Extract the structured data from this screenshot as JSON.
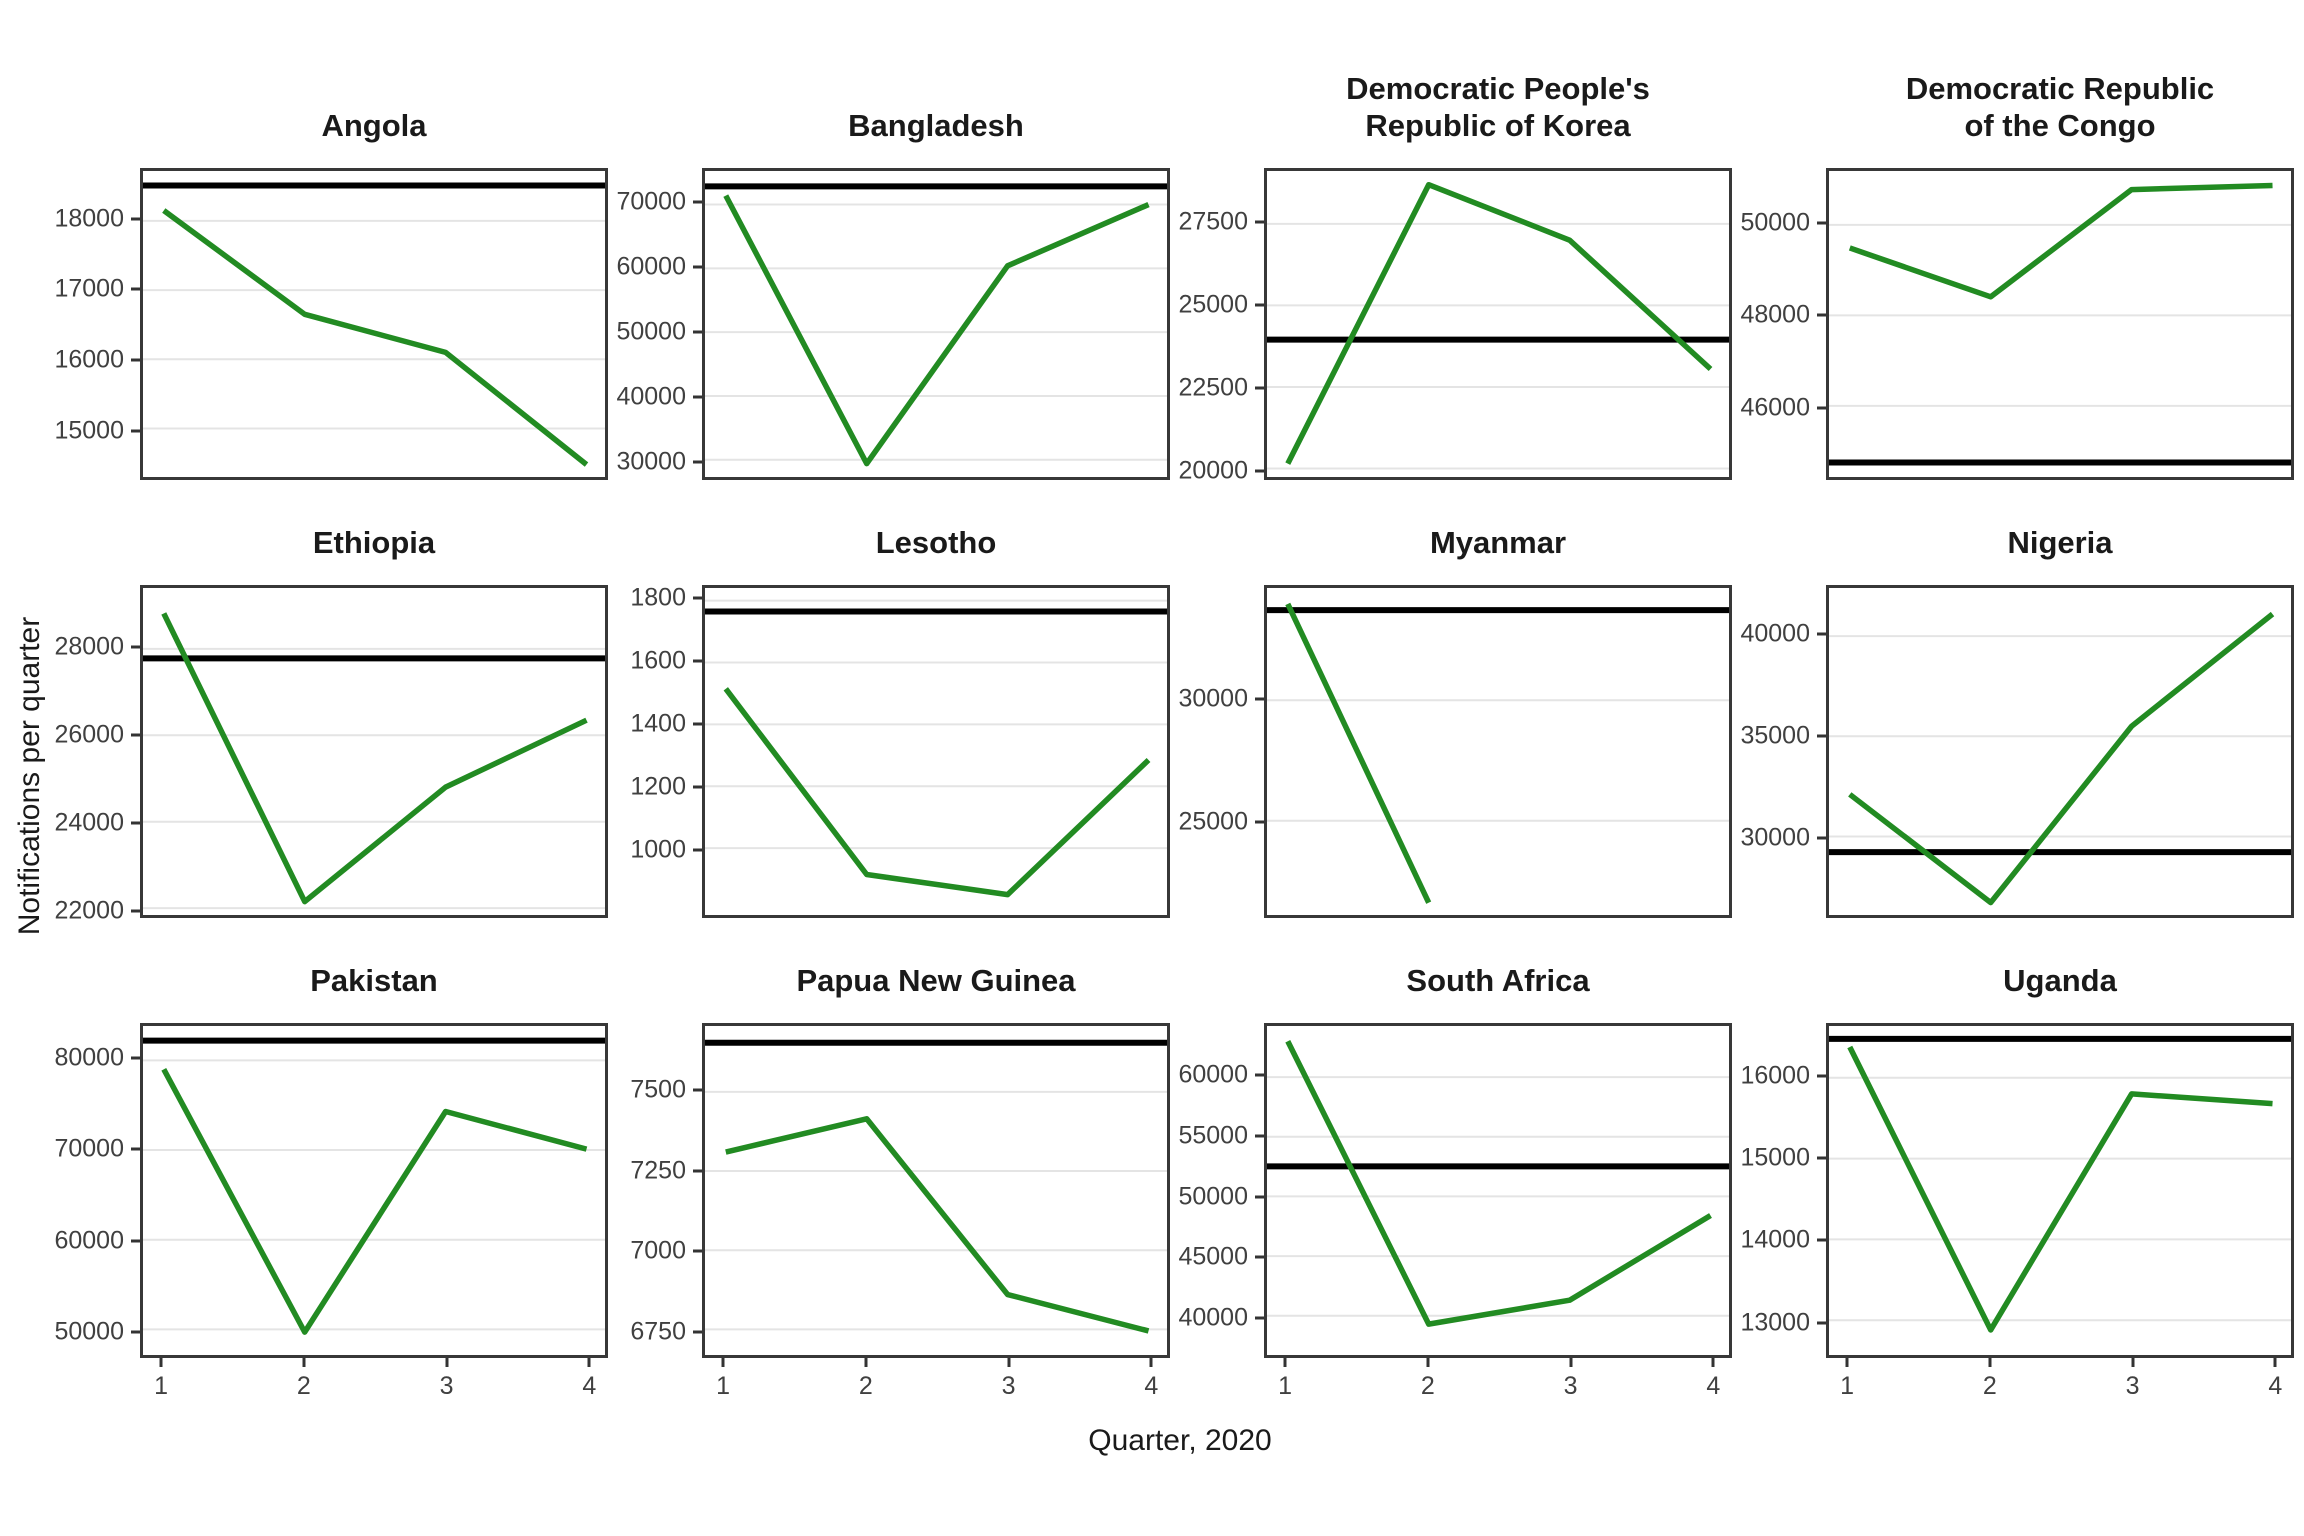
{
  "chart_data": {
    "type": "line",
    "xlabel": "Quarter, 2020",
    "ylabel": "Notifications per quarter",
    "x_ticks": [
      "1",
      "2",
      "3",
      "4"
    ],
    "legend": "none",
    "grid": "horizontal-only",
    "series_style": {
      "notifications_color": "#228B22",
      "reference_line_color": "#000000",
      "gridline_color": "#e4e4e4"
    },
    "panels": [
      {
        "title": "Angola",
        "x": [
          1,
          2,
          3,
          4
        ],
        "values": [
          18150,
          16650,
          16100,
          14480
        ],
        "reference": 18510,
        "yticks": [
          15000,
          16000,
          17000,
          18000
        ],
        "ylim": [
          14300,
          18720
        ]
      },
      {
        "title": "Bangladesh",
        "x": [
          1,
          2,
          3,
          4
        ],
        "values": [
          71400,
          29400,
          60400,
          70000
        ],
        "reference": 72860,
        "yticks": [
          30000,
          40000,
          50000,
          60000,
          70000
        ],
        "ylim": [
          27300,
          75260
        ]
      },
      {
        "title": "Democratic People's Republic of Korea",
        "title_lines": [
          "Democratic People's",
          "Republic of Korea"
        ],
        "x": [
          1,
          2,
          3,
          4
        ],
        "values": [
          20150,
          28700,
          27000,
          23050
        ],
        "reference": 23950,
        "yticks": [
          20000,
          22500,
          25000,
          27500
        ],
        "ylim": [
          19740,
          29120
        ]
      },
      {
        "title": "Democratic Republic of the Congo",
        "title_lines": [
          "Democratic Republic",
          "of the Congo"
        ],
        "x": [
          1,
          2,
          3,
          4
        ],
        "values": [
          49490,
          48410,
          50780,
          50870
        ],
        "reference": 44750,
        "yticks": [
          46000,
          48000,
          50000
        ],
        "ylim": [
          44430,
          51190
        ]
      },
      {
        "title": "Ethiopia",
        "x": [
          1,
          2,
          3,
          4
        ],
        "values": [
          28820,
          22150,
          24800,
          26350
        ],
        "reference": 27780,
        "yticks": [
          22000,
          24000,
          26000,
          28000
        ],
        "ylim": [
          21840,
          29410
        ]
      },
      {
        "title": "Lesotho",
        "x": [
          1,
          2,
          3,
          4
        ],
        "values": [
          1515,
          915,
          850,
          1285
        ],
        "reference": 1765,
        "yticks": [
          1000,
          1200,
          1400,
          1600,
          1800
        ],
        "ylim": [
          784,
          1841
        ]
      },
      {
        "title": "Myanmar",
        "x": [
          1,
          2
        ],
        "values": [
          34000,
          21600
        ],
        "reference": 33740,
        "yticks": [
          25000,
          30000
        ],
        "ylim": [
          21090,
          34660
        ]
      },
      {
        "title": "Nigeria",
        "x": [
          1,
          2,
          3,
          4
        ],
        "values": [
          32100,
          26700,
          35500,
          41100
        ],
        "reference": 29220,
        "yticks": [
          30000,
          35000,
          40000
        ],
        "ylim": [
          26080,
          42400
        ]
      },
      {
        "title": "Pakistan",
        "x": [
          1,
          2,
          3,
          4
        ],
        "values": [
          79000,
          49700,
          74300,
          70100
        ],
        "reference": 82200,
        "yticks": [
          50000,
          60000,
          70000,
          80000
        ],
        "ylim": [
          47150,
          83830
        ]
      },
      {
        "title": "Papua New Guinea",
        "x": [
          1,
          2,
          3,
          4
        ],
        "values": [
          7310,
          7415,
          6860,
          6745
        ],
        "reference": 7655,
        "yticks": [
          6750,
          7000,
          7250,
          7500
        ],
        "ylim": [
          6669,
          7708
        ]
      },
      {
        "title": "South Africa",
        "x": [
          1,
          2,
          3,
          4
        ],
        "values": [
          63000,
          39300,
          41300,
          48400
        ],
        "reference": 52520,
        "yticks": [
          40000,
          45000,
          50000,
          55000,
          60000
        ],
        "ylim": [
          36710,
          64280
        ]
      },
      {
        "title": "Uganda",
        "x": [
          1,
          2,
          3,
          4
        ],
        "values": [
          16380,
          12880,
          15800,
          15680
        ],
        "reference": 16480,
        "yticks": [
          13000,
          14000,
          15000,
          16000
        ],
        "ylim": [
          12570,
          16640
        ]
      }
    ]
  }
}
